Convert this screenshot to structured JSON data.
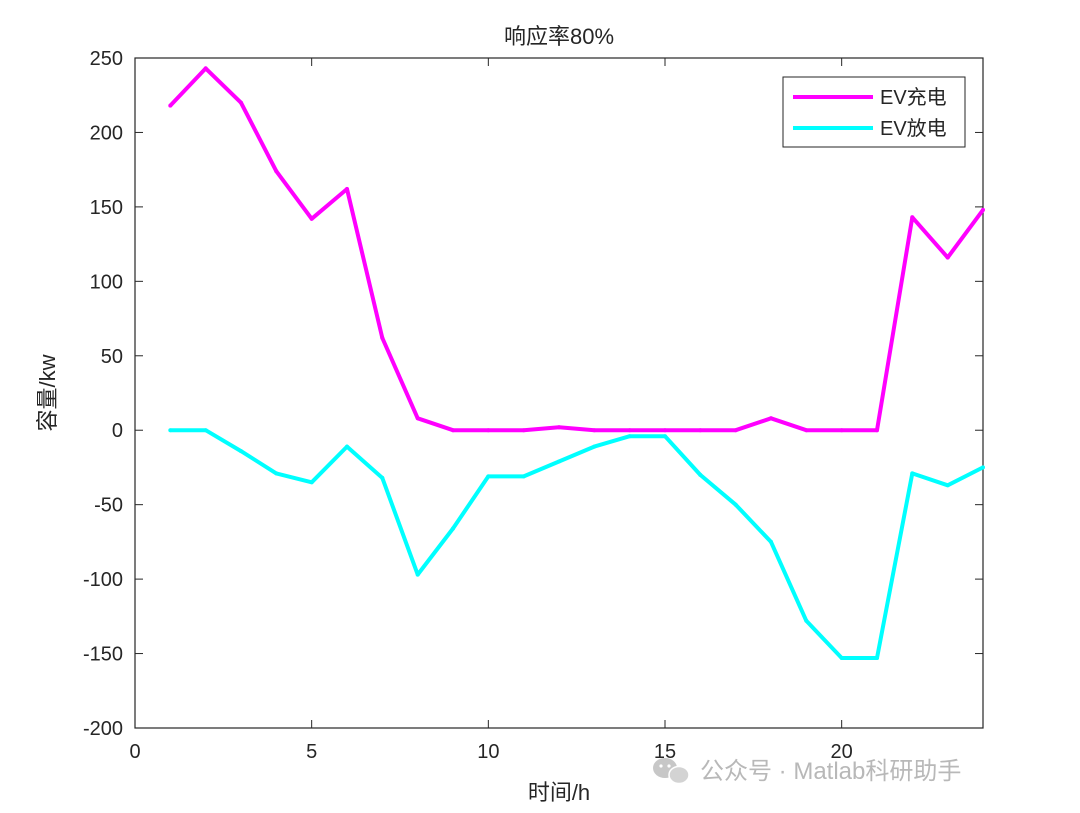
{
  "chart_data": {
    "type": "line",
    "title": "响应率80%",
    "xlabel": "时间/h",
    "ylabel": "容量/kw",
    "xlim": [
      0,
      24
    ],
    "ylim": [
      -200,
      250
    ],
    "xticks": [
      0,
      5,
      10,
      15,
      20
    ],
    "yticks": [
      -200,
      -150,
      -100,
      -50,
      0,
      50,
      100,
      150,
      200,
      250
    ],
    "grid": false,
    "legend_position": "top-right",
    "x": [
      1,
      2,
      3,
      4,
      5,
      6,
      7,
      8,
      9,
      10,
      11,
      12,
      13,
      14,
      15,
      16,
      17,
      18,
      19,
      20,
      21,
      22,
      23,
      24
    ],
    "series": [
      {
        "name": "EV充电",
        "color": "#ff00ff",
        "values": [
          218,
          243,
          220,
          174,
          142,
          162,
          62,
          8,
          0,
          0,
          0,
          2,
          0,
          0,
          0,
          0,
          0,
          8,
          0,
          0,
          0,
          143,
          116,
          148
        ]
      },
      {
        "name": "EV放电",
        "color": "#00ffff",
        "values": [
          0,
          0,
          -14,
          -29,
          -35,
          -11,
          -32,
          -97,
          -66,
          -31,
          -31,
          -21,
          -11,
          -4,
          -4,
          -30,
          -50,
          -75,
          -128,
          -153,
          -153,
          -29,
          -37,
          -25
        ]
      }
    ]
  },
  "watermark": {
    "icon": "wechat-icon",
    "text": "公众号 · Matlab科研助手"
  }
}
